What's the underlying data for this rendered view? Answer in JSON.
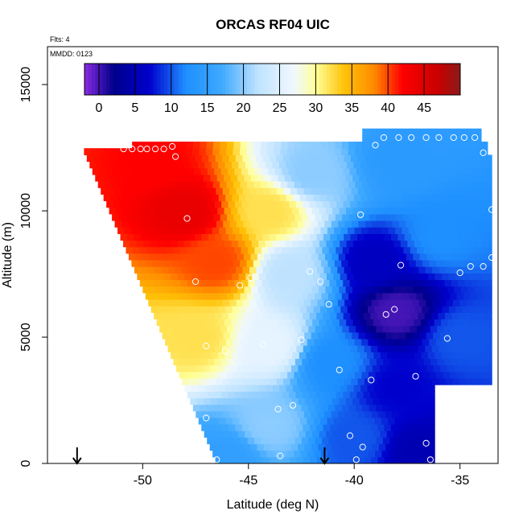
{
  "chart_data": {
    "type": "heatmap",
    "title": "ORCAS RF04 UIC",
    "top_notes": [
      "Flts: 4",
      "MMDD: 0123"
    ],
    "xlabel": "Latitude (deg N)",
    "ylabel": "Altitude (m)",
    "xlim": [
      -54.5,
      -33.2
    ],
    "ylim": [
      0,
      16500
    ],
    "xticks": [
      -50,
      -45,
      -40,
      -35
    ],
    "yticks": [
      0,
      5000,
      10000,
      15000
    ],
    "colorbar": {
      "range": [
        -2,
        50
      ],
      "ticks": [
        0,
        5,
        10,
        15,
        20,
        25,
        30,
        35,
        40,
        45
      ],
      "stops": [
        {
          "v": -2,
          "c": "#8a2be2"
        },
        {
          "v": 2,
          "c": "#00008b"
        },
        {
          "v": 7,
          "c": "#0000cd"
        },
        {
          "v": 12,
          "c": "#1e90ff"
        },
        {
          "v": 17,
          "c": "#3fa9ff"
        },
        {
          "v": 22,
          "c": "#bfe3ff"
        },
        {
          "v": 27,
          "c": "#f0f8ff"
        },
        {
          "v": 30,
          "c": "#ffff99"
        },
        {
          "v": 34,
          "c": "#ffc107"
        },
        {
          "v": 38,
          "c": "#ff8c00"
        },
        {
          "v": 42,
          "c": "#ff0000"
        },
        {
          "v": 47,
          "c": "#c80000"
        },
        {
          "v": 50,
          "c": "#8b1a1a"
        }
      ]
    },
    "field_description_points": [
      {
        "lat": -48,
        "alt": 10000,
        "value": 44
      },
      {
        "lat": -49.5,
        "alt": 12000,
        "value": 42
      },
      {
        "lat": -46.5,
        "alt": 8000,
        "value": 40
      },
      {
        "lat": -47.5,
        "alt": 5000,
        "value": 32
      },
      {
        "lat": -44,
        "alt": 10000,
        "value": 32
      },
      {
        "lat": -43,
        "alt": 7500,
        "value": 22
      },
      {
        "lat": -42,
        "alt": 11500,
        "value": 20
      },
      {
        "lat": -38,
        "alt": 12000,
        "value": 14
      },
      {
        "lat": -38,
        "alt": 6000,
        "value": 0
      },
      {
        "lat": -39,
        "alt": 8000,
        "value": 6
      },
      {
        "lat": -36,
        "alt": 9000,
        "value": 12
      },
      {
        "lat": -44,
        "alt": 4700,
        "value": 26
      },
      {
        "lat": -41,
        "alt": 4000,
        "value": 12
      },
      {
        "lat": -38,
        "alt": 3000,
        "value": 7
      },
      {
        "lat": -44,
        "alt": 1500,
        "value": 20
      },
      {
        "lat": -40,
        "alt": 1000,
        "value": 10
      },
      {
        "lat": -37,
        "alt": 500,
        "value": 5
      },
      {
        "lat": -46,
        "alt": 300,
        "value": 15
      },
      {
        "lat": -35,
        "alt": 5000,
        "value": 10
      }
    ],
    "observations": [
      {
        "lat": -50.9,
        "alt": 12450
      },
      {
        "lat": -50.5,
        "alt": 12450
      },
      {
        "lat": -50.1,
        "alt": 12450
      },
      {
        "lat": -49.8,
        "alt": 12450
      },
      {
        "lat": -49.4,
        "alt": 12450
      },
      {
        "lat": -49.0,
        "alt": 12450
      },
      {
        "lat": -48.6,
        "alt": 12550
      },
      {
        "lat": -48.45,
        "alt": 12150
      },
      {
        "lat": -47.9,
        "alt": 9700
      },
      {
        "lat": -47.5,
        "alt": 7200
      },
      {
        "lat": -47.0,
        "alt": 4650
      },
      {
        "lat": -46.1,
        "alt": 4450
      },
      {
        "lat": -45.4,
        "alt": 7050
      },
      {
        "lat": -44.9,
        "alt": 7350
      },
      {
        "lat": -44.3,
        "alt": 4700
      },
      {
        "lat": -43.6,
        "alt": 2150
      },
      {
        "lat": -42.9,
        "alt": 2300
      },
      {
        "lat": -42.5,
        "alt": 4900
      },
      {
        "lat": -42.1,
        "alt": 7600
      },
      {
        "lat": -41.6,
        "alt": 7200
      },
      {
        "lat": -41.2,
        "alt": 6300
      },
      {
        "lat": -40.7,
        "alt": 3700
      },
      {
        "lat": -40.2,
        "alt": 1100
      },
      {
        "lat": -39.9,
        "alt": 150
      },
      {
        "lat": -39.7,
        "alt": 9850
      },
      {
        "lat": -39.6,
        "alt": 650
      },
      {
        "lat": -39.2,
        "alt": 3300
      },
      {
        "lat": -39.0,
        "alt": 12600
      },
      {
        "lat": -38.6,
        "alt": 12900
      },
      {
        "lat": -38.5,
        "alt": 5900
      },
      {
        "lat": -38.1,
        "alt": 6100
      },
      {
        "lat": -37.9,
        "alt": 12900
      },
      {
        "lat": -37.8,
        "alt": 7850
      },
      {
        "lat": -37.3,
        "alt": 12900
      },
      {
        "lat": -37.1,
        "alt": 3450
      },
      {
        "lat": -36.6,
        "alt": 12900
      },
      {
        "lat": -36.6,
        "alt": 800
      },
      {
        "lat": -36.4,
        "alt": 150
      },
      {
        "lat": -36.0,
        "alt": 12900
      },
      {
        "lat": -35.9,
        "alt": 2350
      },
      {
        "lat": -35.6,
        "alt": 4950
      },
      {
        "lat": -35.3,
        "alt": 12900
      },
      {
        "lat": -35.0,
        "alt": 7550
      },
      {
        "lat": -34.8,
        "alt": 12900
      },
      {
        "lat": -34.5,
        "alt": 7800
      },
      {
        "lat": -34.3,
        "alt": 12900
      },
      {
        "lat": -33.9,
        "alt": 12300
      },
      {
        "lat": -33.9,
        "alt": 7800
      },
      {
        "lat": -33.5,
        "alt": 10050
      },
      {
        "lat": -33.5,
        "alt": 8150
      },
      {
        "lat": -46.5,
        "alt": 150
      },
      {
        "lat": -43.5,
        "alt": 300
      },
      {
        "lat": -47.0,
        "alt": 1800
      }
    ],
    "arrows_lat": [
      -53.1,
      -41.4
    ]
  }
}
